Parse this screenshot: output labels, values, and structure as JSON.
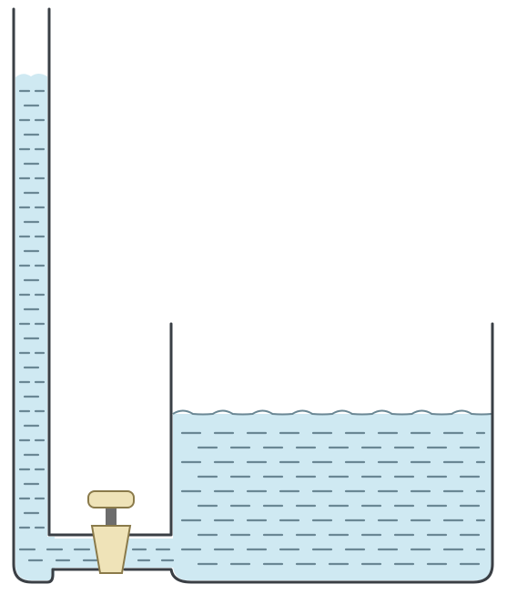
{
  "diagram": {
    "description_elements": [
      "narrow-tube",
      "wide-container",
      "connecting-pipe",
      "valve"
    ],
    "colors": {
      "water": "#cfe9f2",
      "wall": "#3a3f45",
      "dash": "#6a8794",
      "valve_body": "#efe3b8",
      "valve_outline": "#8a7a4a",
      "valve_stem": "#6d6d6d"
    },
    "valve_state": "closed"
  }
}
